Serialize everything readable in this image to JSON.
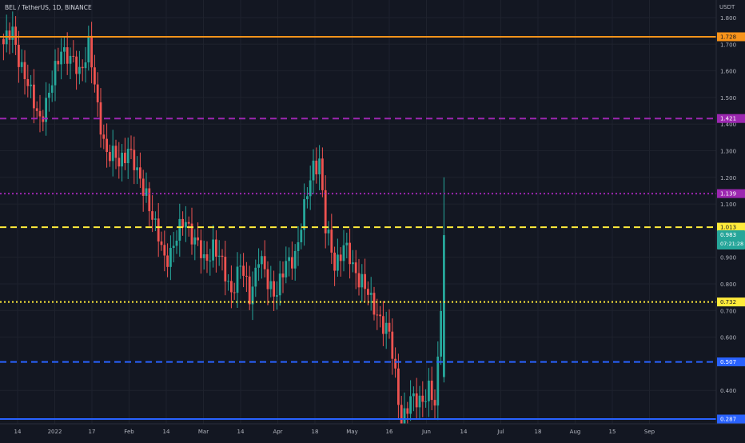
{
  "header": {
    "symbol_title": "BEL / TetherUS, 1D, BINANCE"
  },
  "price_scale": {
    "currency": "USDT"
  },
  "current_price": {
    "value": "0.983",
    "countdown": "07:21:28",
    "color": "#26a69a"
  },
  "chart_data": {
    "type": "candlestick",
    "title": "BEL / TetherUS, 1D, BINANCE",
    "ylabel": "USDT",
    "ylim": [
      0.287,
      1.85
    ],
    "y_ticks": [
      1.8,
      1.7,
      1.6,
      1.5,
      1.4,
      1.3,
      1.2,
      1.1,
      0.9,
      0.8,
      0.7,
      0.6,
      0.4
    ],
    "x_ticks": [
      "14",
      "2022",
      "17",
      "Feb",
      "14",
      "Mar",
      "14",
      "Apr",
      "18",
      "May",
      "16",
      "Jun",
      "14",
      "Jul",
      "18",
      "Aug",
      "15",
      "Sep"
    ],
    "grid": true,
    "horizontal_levels": [
      {
        "value": 1.728,
        "label": "1.728",
        "style": "solid",
        "color": "#f7931a"
      },
      {
        "value": 1.421,
        "label": "1.421",
        "style": "dashed",
        "color": "#9c27b0"
      },
      {
        "value": 1.139,
        "label": "1.139",
        "style": "dotted",
        "color": "#9c27b0"
      },
      {
        "value": 1.013,
        "label": "1.013",
        "style": "dashed",
        "color": "#ffeb3b"
      },
      {
        "value": 0.732,
        "label": "0.732",
        "style": "dotted",
        "color": "#ffeb3b"
      },
      {
        "value": 0.507,
        "label": "0.507",
        "style": "dashed",
        "color": "#2962ff"
      },
      {
        "value": 0.287,
        "label": "0.287",
        "style": "solid",
        "color": "#2962ff"
      }
    ],
    "series": [
      {
        "name": "BEL/USDT",
        "colors": {
          "up": "#26a69a",
          "down": "#ef5350"
        },
        "anchors": [
          [
            0,
            1.7
          ],
          [
            3,
            1.74
          ],
          [
            6,
            1.62
          ],
          [
            9,
            1.5
          ],
          [
            12,
            1.43
          ],
          [
            15,
            1.5
          ],
          [
            19,
            1.7
          ],
          [
            22,
            1.63
          ],
          [
            25,
            1.6
          ],
          [
            28,
            1.7
          ],
          [
            31,
            1.45
          ],
          [
            34,
            1.3
          ],
          [
            38,
            1.25
          ],
          [
            41,
            1.32
          ],
          [
            44,
            1.2
          ],
          [
            47,
            1.15
          ],
          [
            50,
            1.0
          ],
          [
            53,
            0.9
          ],
          [
            56,
            0.94
          ],
          [
            60,
            1.05
          ],
          [
            63,
            0.96
          ],
          [
            66,
            0.88
          ],
          [
            69,
            0.95
          ],
          [
            72,
            0.86
          ],
          [
            75,
            0.78
          ],
          [
            78,
            0.86
          ],
          [
            81,
            0.76
          ],
          [
            84,
            0.9
          ],
          [
            87,
            0.8
          ],
          [
            90,
            0.78
          ],
          [
            93,
            0.86
          ],
          [
            96,
            0.92
          ],
          [
            99,
            1.07
          ],
          [
            102,
            1.25
          ],
          [
            104,
            1.27
          ],
          [
            106,
            1.0
          ],
          [
            109,
            0.88
          ],
          [
            112,
            0.94
          ],
          [
            115,
            0.86
          ],
          [
            118,
            0.82
          ],
          [
            121,
            0.72
          ],
          [
            124,
            0.68
          ],
          [
            127,
            0.6
          ],
          [
            129,
            0.45
          ],
          [
            131,
            0.3
          ],
          [
            134,
            0.35
          ],
          [
            137,
            0.37
          ],
          [
            140,
            0.4
          ],
          [
            142,
            0.33
          ],
          [
            143,
            0.5
          ],
          [
            145,
            0.983
          ]
        ]
      }
    ]
  }
}
